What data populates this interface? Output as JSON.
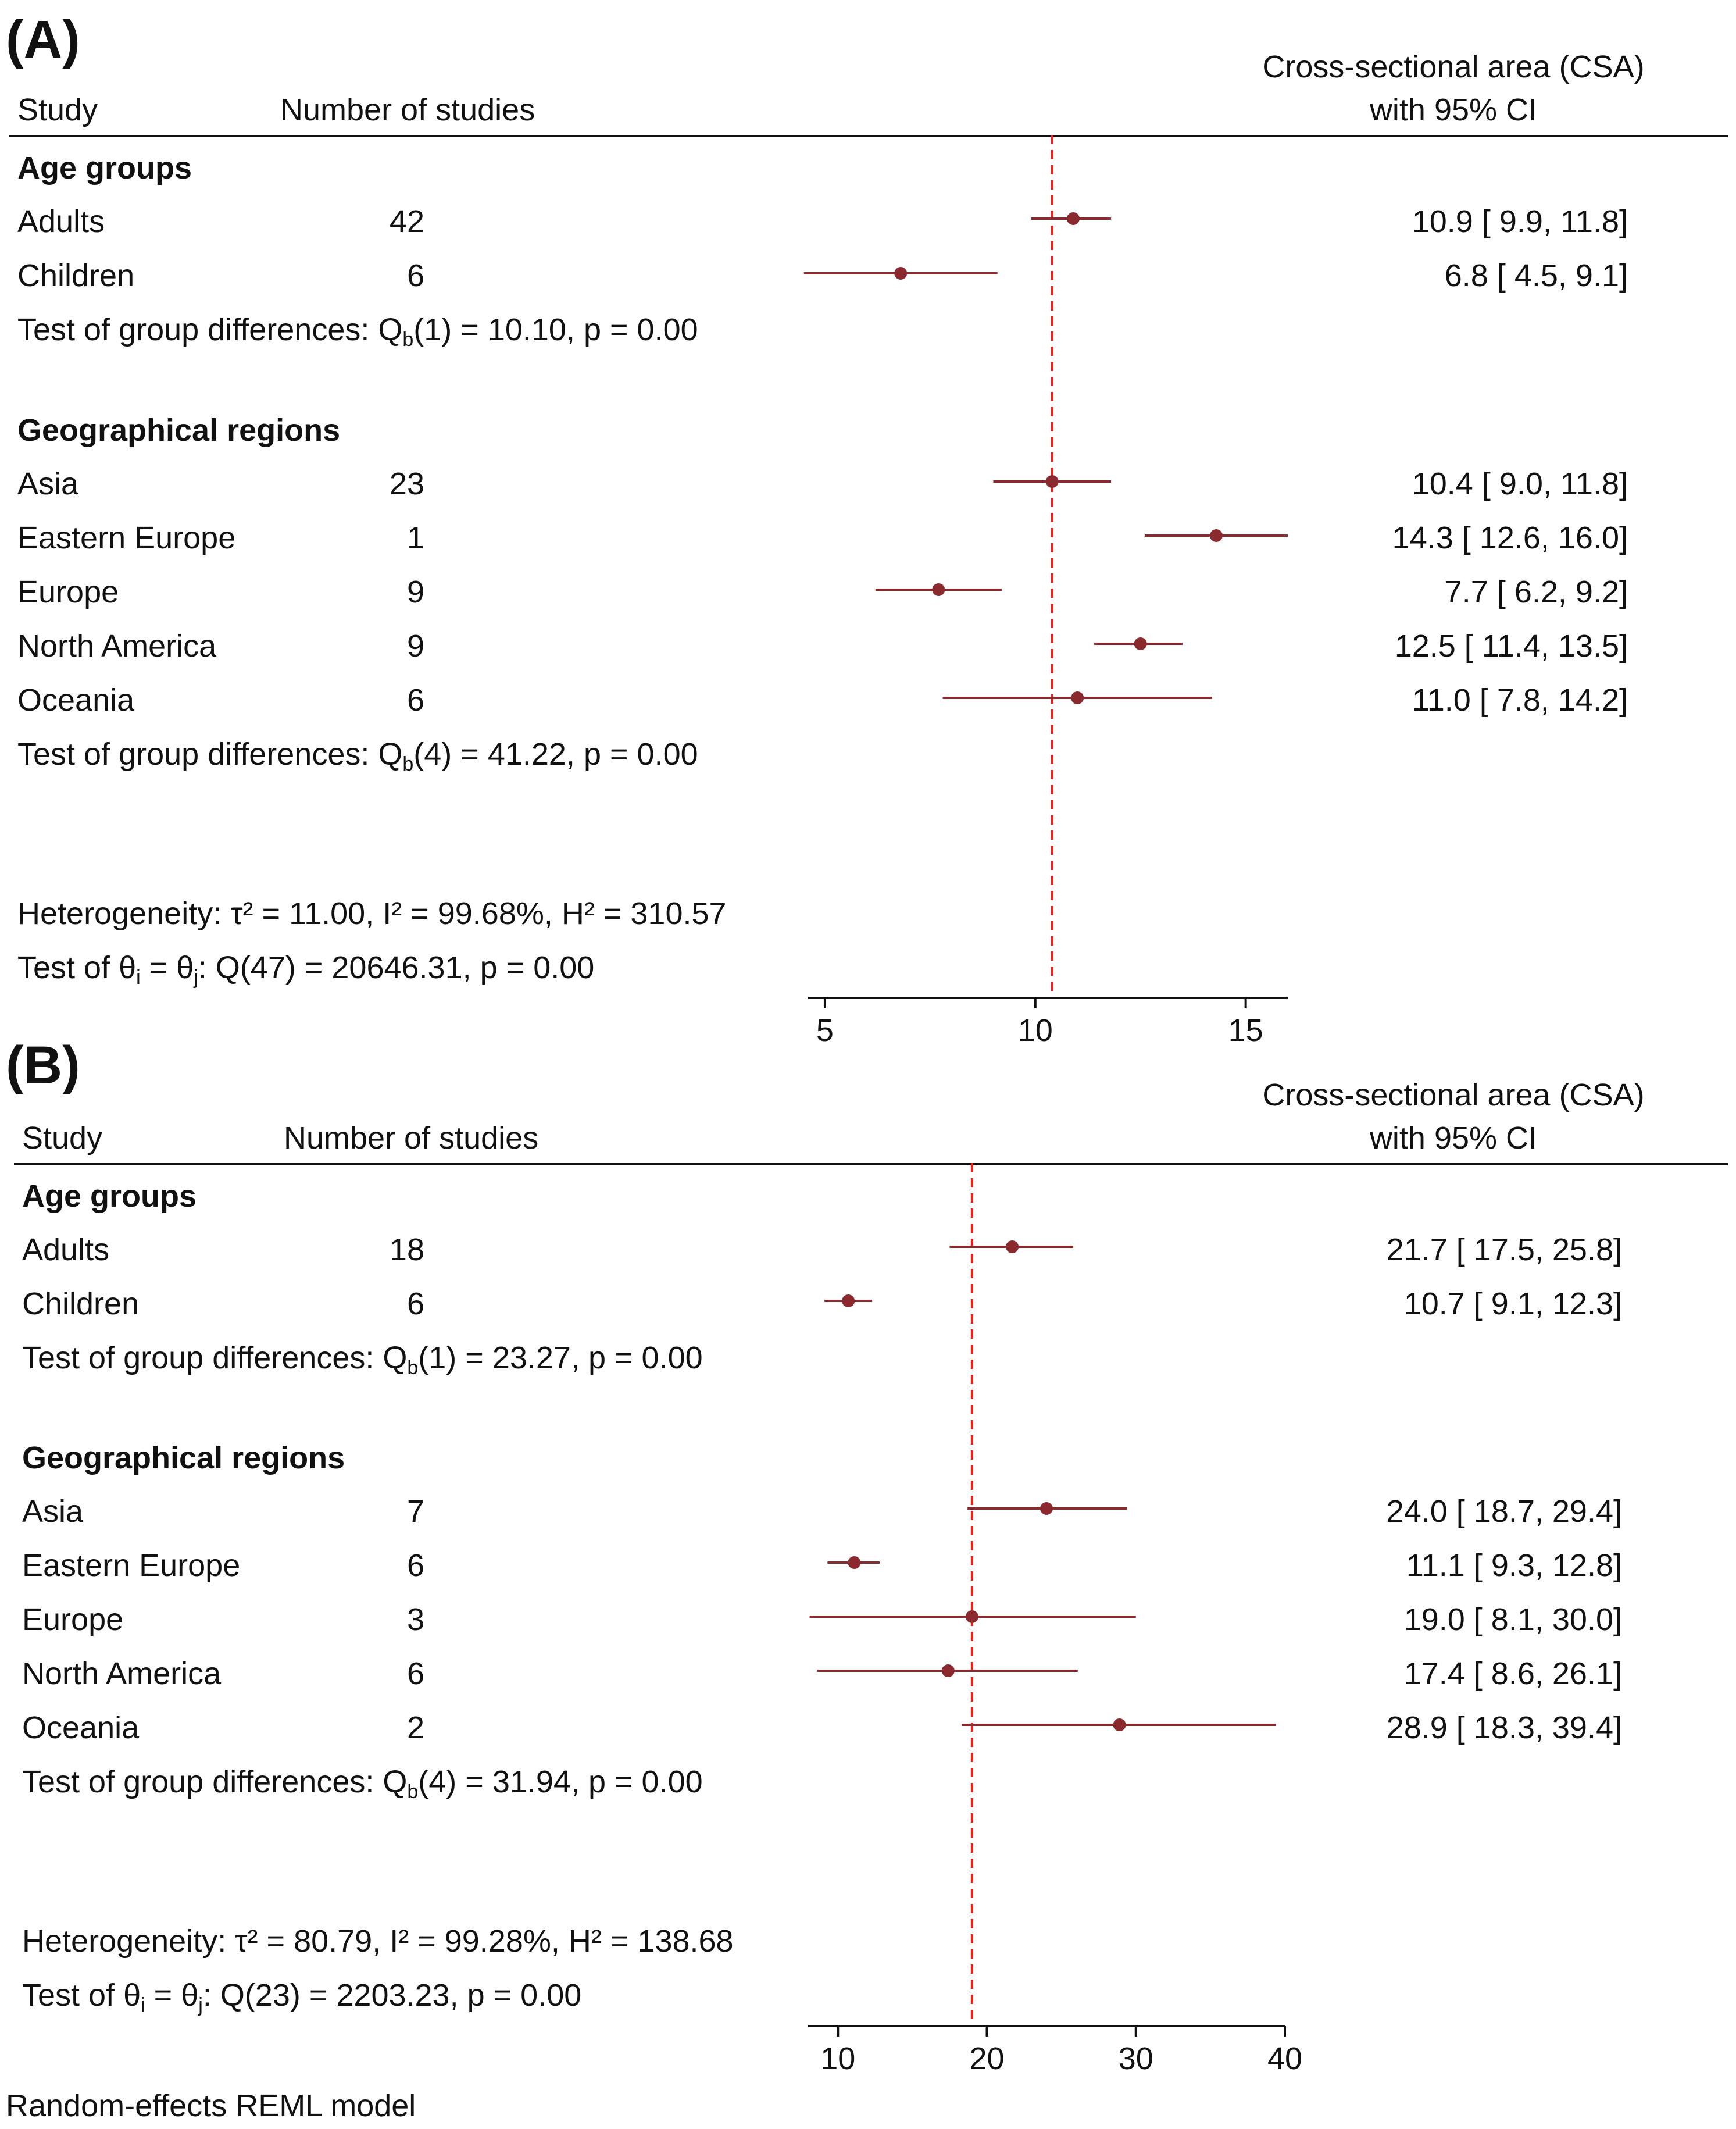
{
  "footer": "Random-effects REML model",
  "colors": {
    "marker": "#8b2a2e",
    "ref_line": "#e8231c",
    "text": "#111111"
  },
  "chart_data": [
    {
      "type": "forest",
      "panel_label": "(A)",
      "header": {
        "study": "Study",
        "n": "Number of studies",
        "effect_line1": "Cross-sectional area (CSA)",
        "effect_line2": "with 95% CI"
      },
      "xlim": [
        4.6,
        16.0
      ],
      "xticks": [
        5,
        10,
        15
      ],
      "overall_estimate": 10.4,
      "groups": [
        {
          "title": "Age groups",
          "rows": [
            {
              "label": "Adults",
              "n": "42",
              "est": 10.9,
              "lo": 9.9,
              "hi": 11.8,
              "ci_text": "10.9 [   9.9,  11.8]"
            },
            {
              "label": "Children",
              "n": "6",
              "est": 6.8,
              "lo": 4.5,
              "hi": 9.1,
              "ci_text": "6.8 [   4.5,    9.1]"
            }
          ],
          "test_prefix": "Test of group differences: Q",
          "test_sub": "b",
          "test_suffix": "(1) = 10.10, p = 0.00"
        },
        {
          "title": "Geographical regions",
          "rows": [
            {
              "label": "Asia",
              "n": "23",
              "est": 10.4,
              "lo": 9.0,
              "hi": 11.8,
              "ci_text": "10.4 [   9.0,  11.8]"
            },
            {
              "label": "Eastern Europe",
              "n": "1",
              "est": 14.3,
              "lo": 12.6,
              "hi": 16.0,
              "ci_text": "14.3 [ 12.6,  16.0]"
            },
            {
              "label": "Europe",
              "n": "9",
              "est": 7.7,
              "lo": 6.2,
              "hi": 9.2,
              "ci_text": "7.7 [   6.2,    9.2]"
            },
            {
              "label": "North America",
              "n": "9",
              "est": 12.5,
              "lo": 11.4,
              "hi": 13.5,
              "ci_text": "12.5 [ 11.4,  13.5]"
            },
            {
              "label": "Oceania",
              "n": "6",
              "est": 11.0,
              "lo": 7.8,
              "hi": 14.2,
              "ci_text": "11.0 [   7.8,  14.2]"
            }
          ],
          "test_prefix": "Test of group differences: Q",
          "test_sub": "b",
          "test_suffix": "(4) = 41.22, p = 0.00"
        }
      ],
      "heterogeneity": "Heterogeneity: τ² = 11.00, I² = 99.68%, H² = 310.57",
      "overall_test": {
        "prefix": "Test of θ",
        "sub_i": "i",
        "mid": " = θ",
        "sub_j": "j",
        "suffix": ": Q(47) = 20646.31, p = 0.00"
      }
    },
    {
      "type": "forest",
      "panel_label": "(B)",
      "header": {
        "study": "Study",
        "n": "Number of studies",
        "effect_line1": "Cross-sectional area (CSA)",
        "effect_line2": "with 95% CI"
      },
      "xlim": [
        8.0,
        40.0
      ],
      "xticks": [
        10,
        20,
        30,
        40
      ],
      "overall_estimate": 19.0,
      "groups": [
        {
          "title": "Age groups",
          "rows": [
            {
              "label": "Adults",
              "n": "18",
              "est": 21.7,
              "lo": 17.5,
              "hi": 25.8,
              "ci_text": "21.7 [ 17.5,  25.8]"
            },
            {
              "label": "Children",
              "n": "6",
              "est": 10.7,
              "lo": 9.1,
              "hi": 12.3,
              "ci_text": "10.7 [   9.1,  12.3]"
            }
          ],
          "test_prefix": "Test of group differences: Q",
          "test_sub": "b",
          "test_suffix": "(1) = 23.27, p = 0.00"
        },
        {
          "title": "Geographical regions",
          "rows": [
            {
              "label": "Asia",
              "n": "7",
              "est": 24.0,
              "lo": 18.7,
              "hi": 29.4,
              "ci_text": "24.0 [ 18.7,  29.4]"
            },
            {
              "label": "Eastern Europe",
              "n": "6",
              "est": 11.1,
              "lo": 9.3,
              "hi": 12.8,
              "ci_text": "11.1 [   9.3,  12.8]"
            },
            {
              "label": "Europe",
              "n": "3",
              "est": 19.0,
              "lo": 8.1,
              "hi": 30.0,
              "ci_text": "19.0 [   8.1,  30.0]"
            },
            {
              "label": "North America",
              "n": "6",
              "est": 17.4,
              "lo": 8.6,
              "hi": 26.1,
              "ci_text": "17.4 [   8.6,  26.1]"
            },
            {
              "label": "Oceania",
              "n": "2",
              "est": 28.9,
              "lo": 18.3,
              "hi": 39.4,
              "ci_text": "28.9 [ 18.3,  39.4]"
            }
          ],
          "test_prefix": "Test of group differences: Q",
          "test_sub": "b",
          "test_suffix": "(4) = 31.94, p = 0.00"
        }
      ],
      "heterogeneity": "Heterogeneity: τ² = 80.79, I² = 99.28%, H² = 138.68",
      "overall_test": {
        "prefix": "Test of θ",
        "sub_i": "i",
        "mid": " = θ",
        "sub_j": "j",
        "suffix": ": Q(23) = 2203.23, p = 0.00"
      }
    }
  ]
}
